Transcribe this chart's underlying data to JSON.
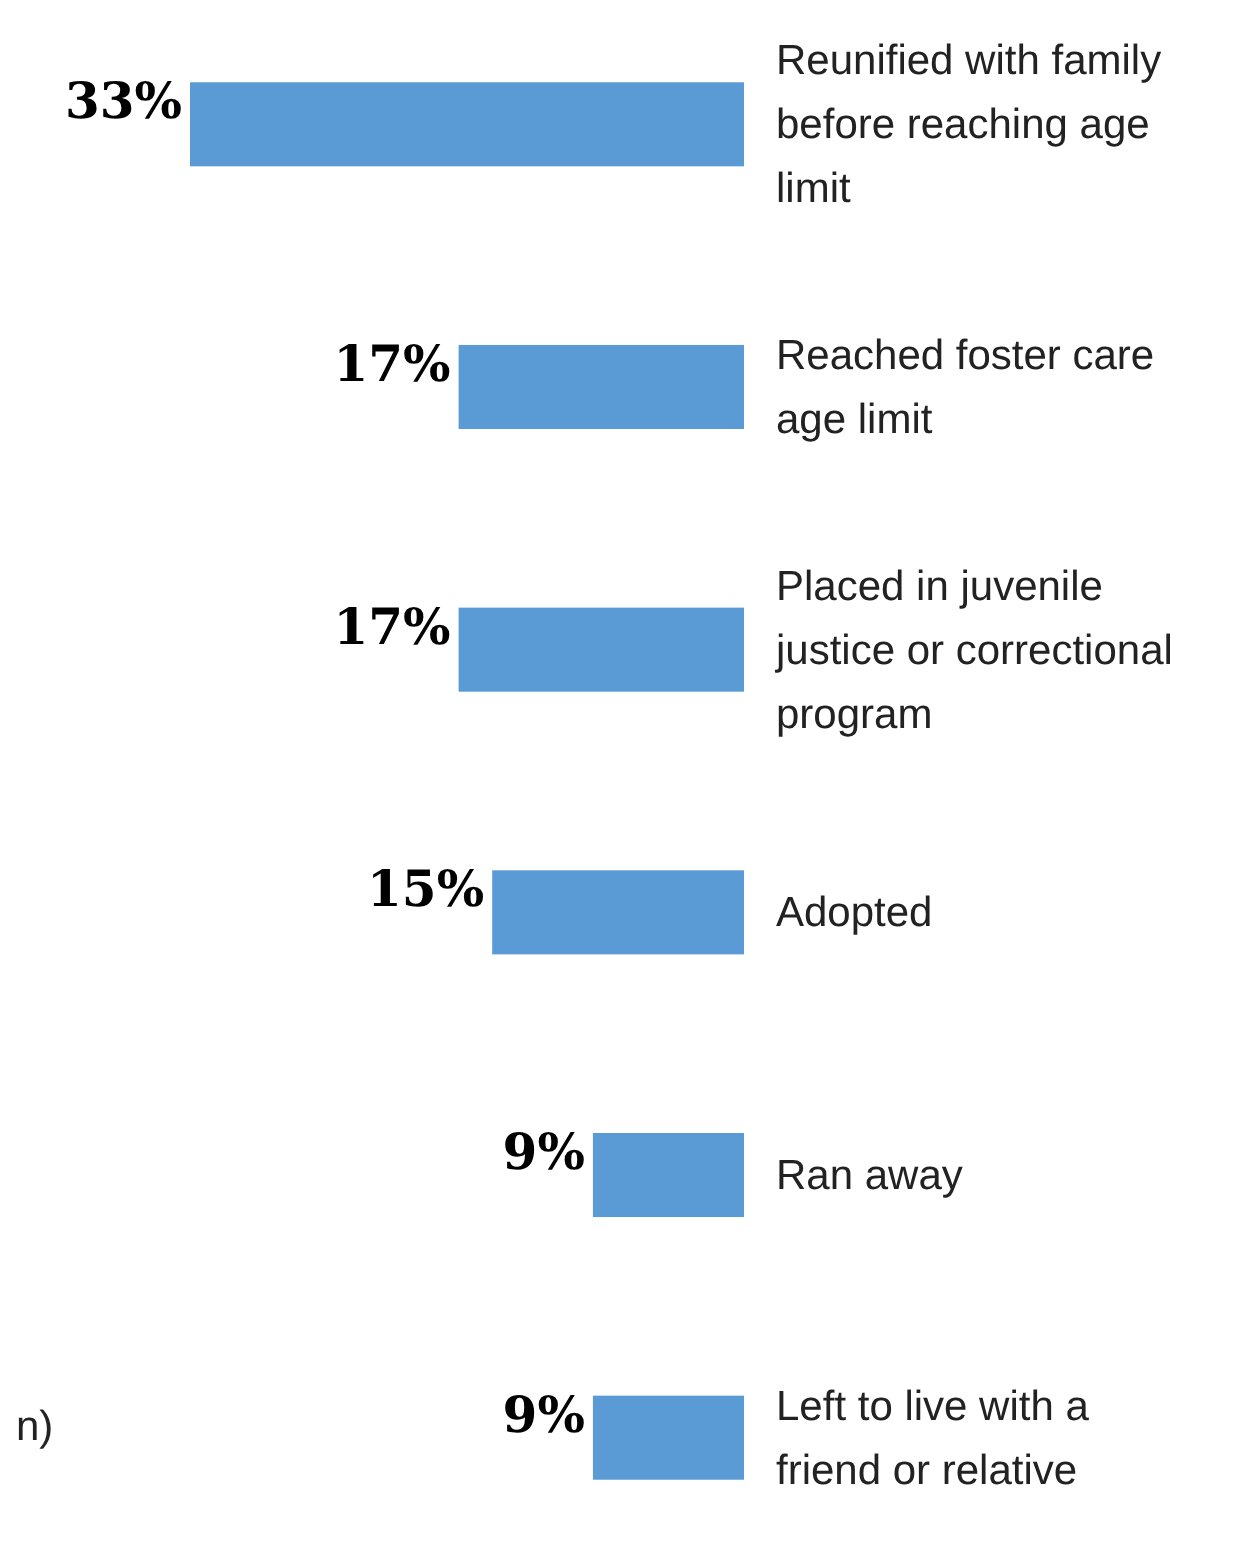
{
  "chart_data": {
    "type": "bar",
    "orientation": "horizontal",
    "categories": [
      "Reunified with family before reaching age limit",
      "Reached foster care age limit",
      "Placed in juvenile justice or correctional program",
      "Adopted",
      "Ran away",
      "Left to live with a friend or relative"
    ],
    "values": [
      33,
      17,
      17,
      15,
      9,
      9
    ],
    "value_labels": [
      "33%",
      "17%",
      "17%",
      "15%",
      "9%",
      "9%"
    ],
    "color": "#5b9bd5",
    "annotations": [
      "n)"
    ]
  }
}
